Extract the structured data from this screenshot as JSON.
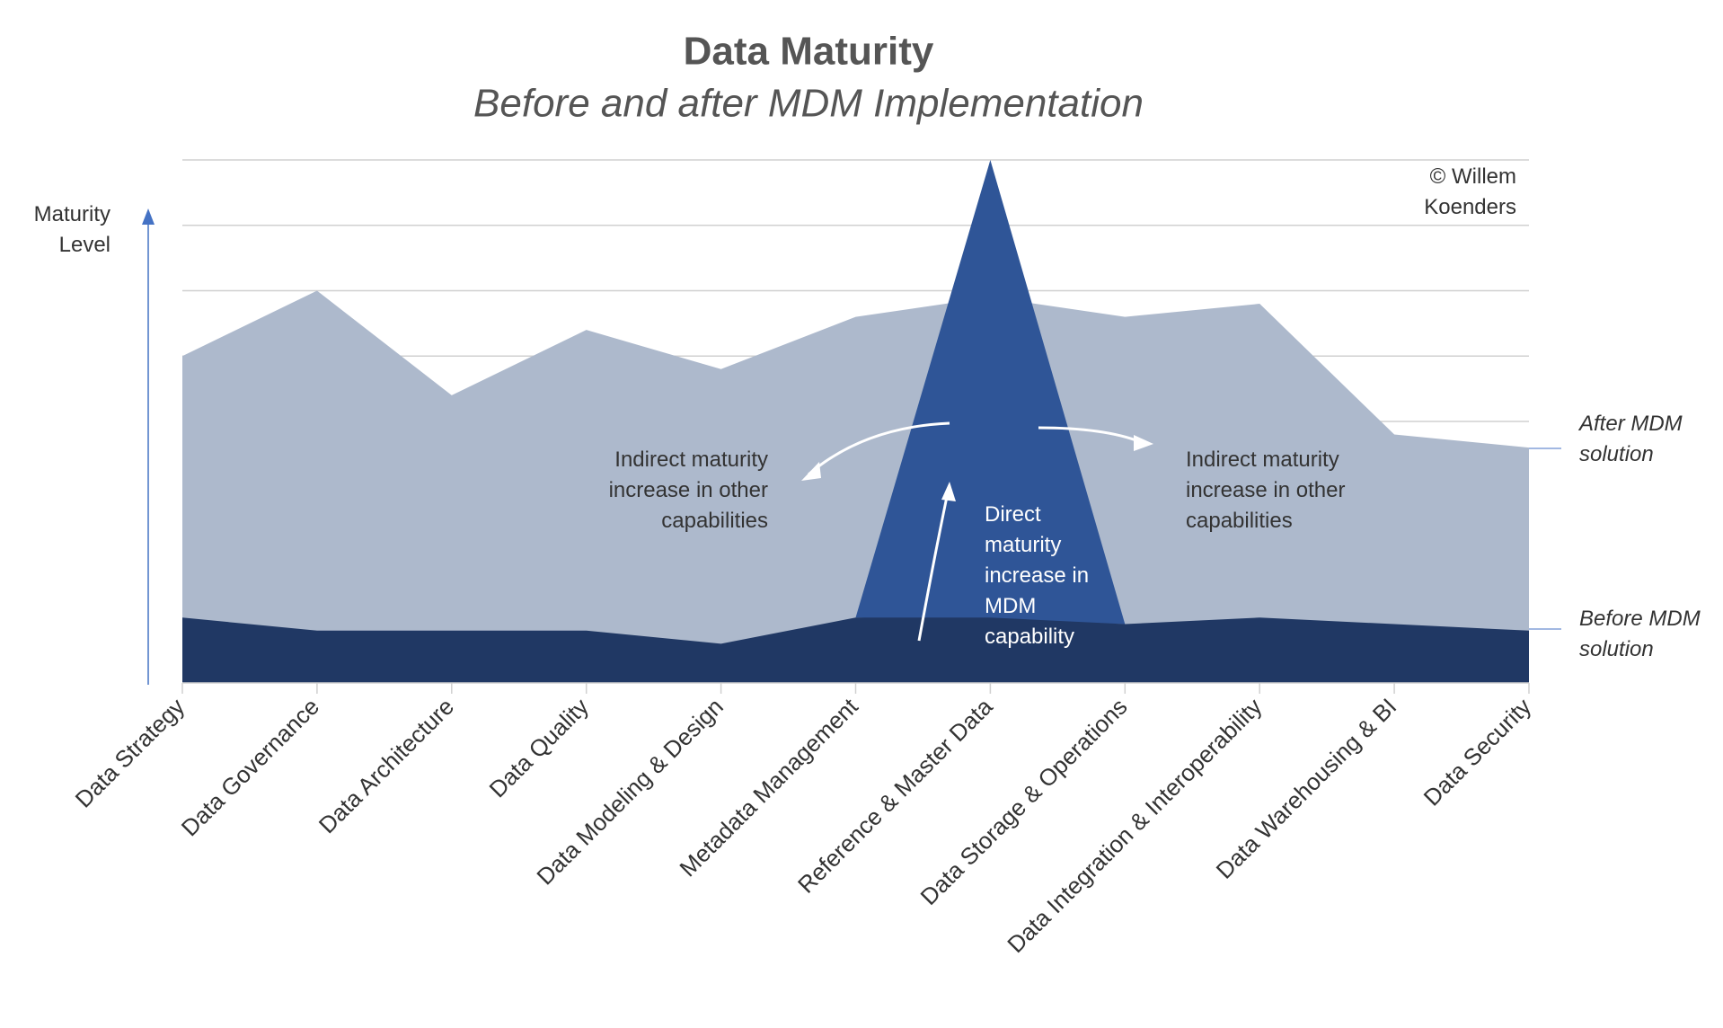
{
  "chart_data": {
    "type": "area",
    "title": "Data Maturity",
    "subtitle": "Before and after MDM Implementation",
    "y_label": "Maturity Level",
    "annotations": [
      "© Willem Koenders",
      "Indirect maturity increase in other capabilities",
      "Indirect maturity increase in other capabilities",
      "Direct maturity increase in MDM capability"
    ],
    "categories": [
      "Data Strategy",
      "Data Governance",
      "Data Architecture",
      "Data Quality",
      "Data Modeling & Design",
      "Metadata Management",
      "Reference & Master Data",
      "Data Storage & Operations",
      "Data Integration & Interoperability",
      "Data Warehousing & BI",
      "Data Security"
    ],
    "series": [
      {
        "name": "After MDM solution",
        "color": "#adb9cc",
        "values": [
          5.0,
          6.0,
          4.4,
          5.4,
          4.8,
          5.6,
          5.9,
          5.6,
          5.8,
          3.8,
          3.6
        ]
      },
      {
        "name": "Before MDM solution",
        "color": "#203864",
        "values": [
          1.0,
          0.8,
          0.8,
          0.8,
          0.6,
          1.0,
          1.0,
          0.9,
          1.0,
          0.9,
          0.8
        ]
      },
      {
        "color": "#2f5597",
        "values": [
          null,
          null,
          null,
          null,
          null,
          1.0,
          8,
          0.9,
          null,
          null,
          null
        ]
      }
    ],
    "ylim": [
      0,
      8
    ],
    "yticks": [
      4,
      5,
      6,
      7,
      8
    ],
    "grid": true
  }
}
